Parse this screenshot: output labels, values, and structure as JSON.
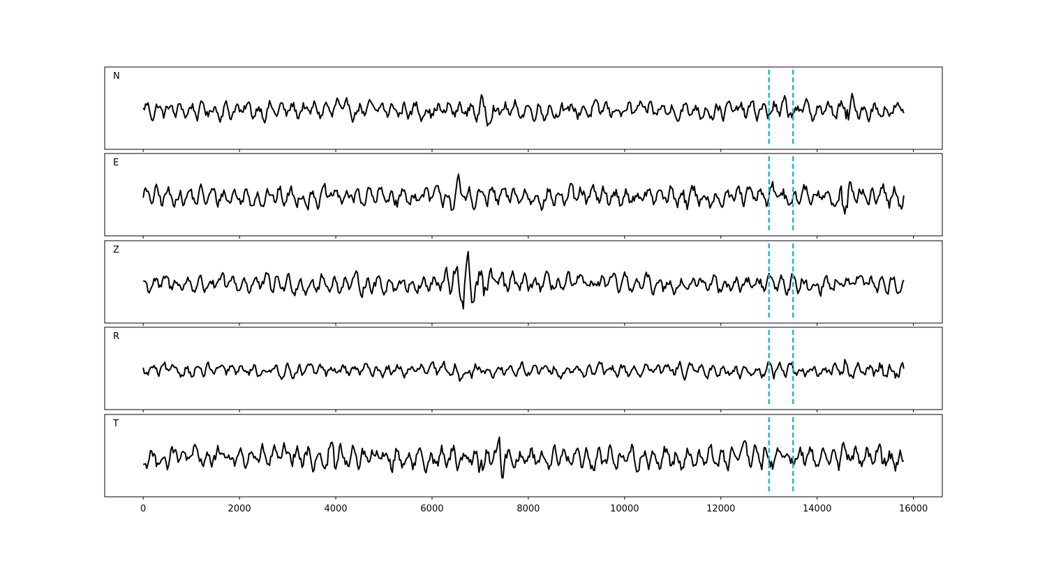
{
  "chart_data": {
    "type": "line",
    "panels": [
      {
        "label": "N"
      },
      {
        "label": "E"
      },
      {
        "label": "Z"
      },
      {
        "label": "R"
      },
      {
        "label": "T"
      }
    ],
    "xlim": [
      -800,
      16600
    ],
    "x_ticks": [
      0,
      2000,
      4000,
      6000,
      8000,
      10000,
      12000,
      14000,
      16000
    ],
    "x_tick_labels": [
      "0",
      "2000",
      "4000",
      "6000",
      "8000",
      "10000",
      "12000",
      "14000",
      "16000"
    ],
    "sample_range": [
      0,
      15800
    ],
    "markers": [
      13000,
      13500
    ],
    "marker_color": "#17becf",
    "trace_color": "#000000",
    "ylim": [
      -1,
      1
    ],
    "y_ticks_shown": false,
    "grid": false
  }
}
